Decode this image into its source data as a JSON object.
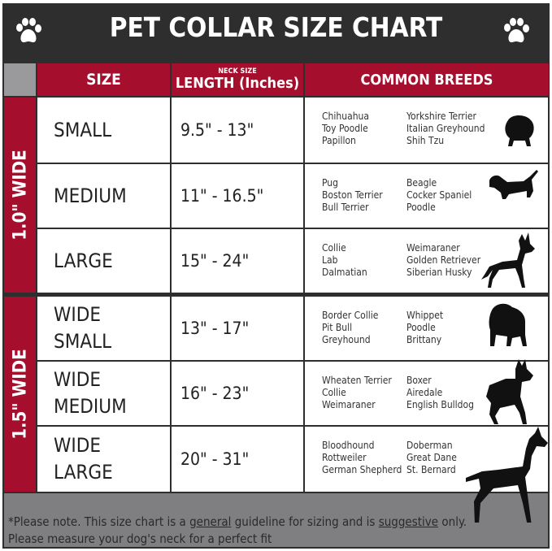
{
  "title": "PET COLLAR SIZE CHART",
  "header": {
    "size": "SIZE",
    "length_small": "NECK SIZE",
    "length": "LENGTH (Inches)",
    "breeds": "COMMON BREEDS"
  },
  "groups": [
    {
      "label": "1.0\" WIDE"
    },
    {
      "label": "1.5\" WIDE"
    }
  ],
  "rows": [
    {
      "size": [
        "SMALL"
      ],
      "length": "9.5\" - 13\"",
      "breeds_a": [
        "Chihuahua",
        "Toy Poodle",
        "Papillon"
      ],
      "breeds_b": [
        "Yorkshire Terrier",
        "Italian Greyhound",
        "Shih Tzu"
      ],
      "icon": "small-dog-silhouette-icon"
    },
    {
      "size": [
        "MEDIUM"
      ],
      "length": "11\" - 16.5\"",
      "breeds_a": [
        "Pug",
        "Boston Terrier",
        "Bull Terrier"
      ],
      "breeds_b": [
        "Beagle",
        "Cocker Spaniel",
        "Poodle"
      ],
      "icon": "dachshund-silhouette-icon"
    },
    {
      "size": [
        "LARGE"
      ],
      "length": "15\" - 24\"",
      "breeds_a": [
        "Collie",
        "Lab",
        "Dalmatian"
      ],
      "breeds_b": [
        "Weimaraner",
        "Golden Retriever",
        "Siberian Husky"
      ],
      "icon": "shepherd-silhouette-icon"
    },
    {
      "size": [
        "WIDE",
        "SMALL"
      ],
      "length": "13\" - 17\"",
      "breeds_a": [
        "Border Collie",
        "Pit Bull",
        "Greyhound"
      ],
      "breeds_b": [
        "Whippet",
        "Poodle",
        "Brittany"
      ],
      "icon": "bulldog-silhouette-icon"
    },
    {
      "size": [
        "WIDE",
        "MEDIUM"
      ],
      "length": "16\" - 23\"",
      "breeds_a": [
        "Wheaten Terrier",
        "Collie",
        "Weimaraner"
      ],
      "breeds_b": [
        "Boxer",
        "Airedale",
        "English Bulldog"
      ],
      "icon": "pitbull-silhouette-icon"
    },
    {
      "size": [
        "WIDE",
        "LARGE"
      ],
      "length": "20\" - 31\"",
      "breeds_a": [
        "Bloodhound",
        "Rottweiler",
        "German Shepherd"
      ],
      "breeds_b": [
        "Doberman",
        "Great Dane",
        "St. Bernard"
      ],
      "icon": "doberman-silhouette-icon"
    }
  ],
  "footer": {
    "prefix": "*Please note. This size chart is a ",
    "u1": "general",
    "mid": " guideline for sizing and is ",
    "u2": "suggestive",
    "suffix": " only.",
    "line2": "Please measure your dog's neck for a perfect fit"
  },
  "colors": {
    "accent": "#a50f2d",
    "frame": "#2e2e2e",
    "footer": "#7f7f81"
  }
}
